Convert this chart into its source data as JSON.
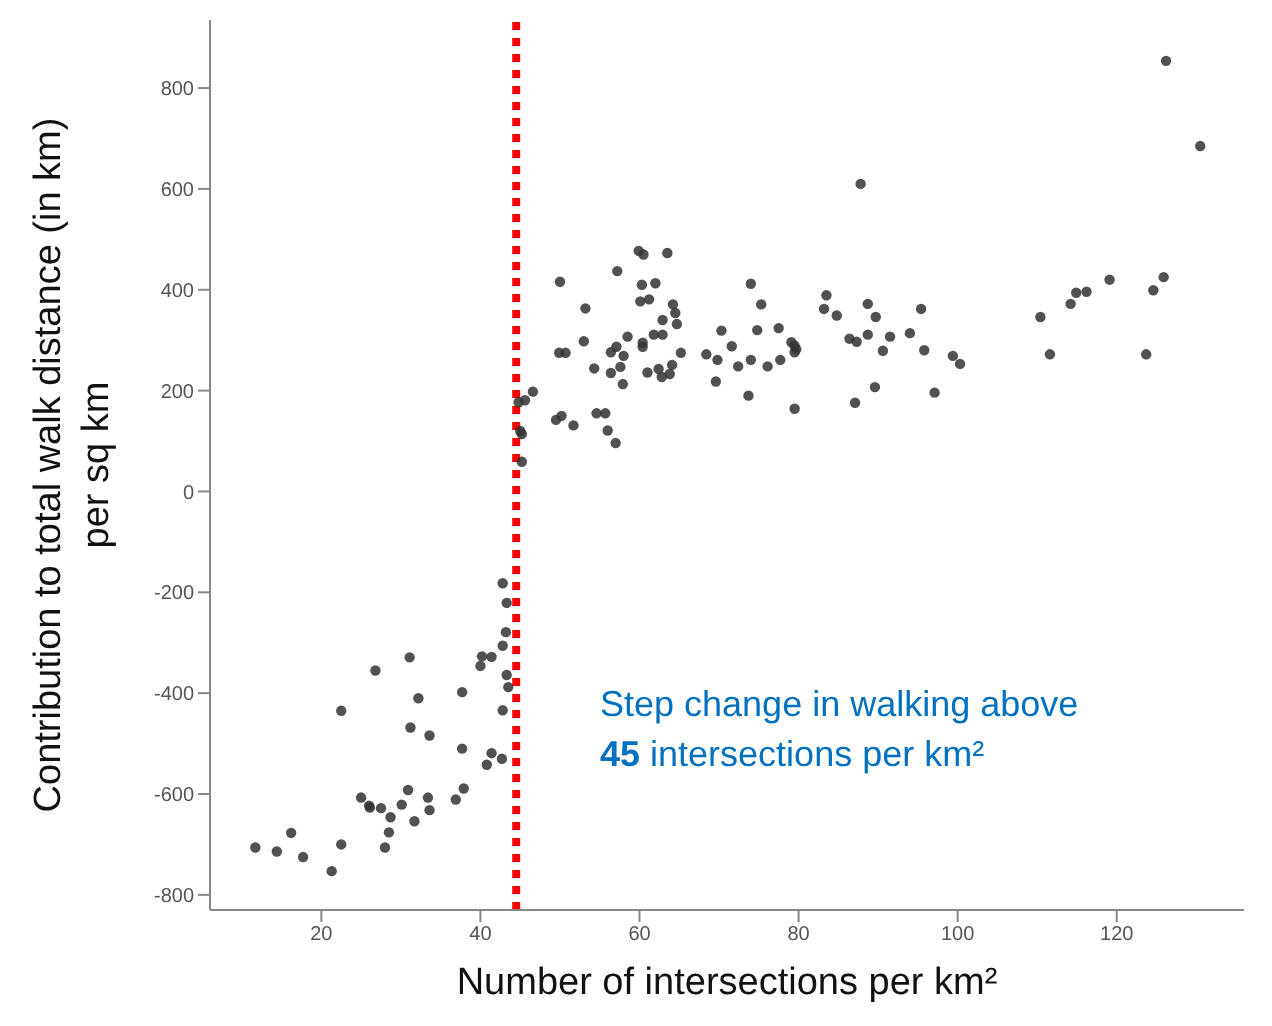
{
  "chart_data": {
    "type": "scatter",
    "xlabel": "Number of intersections per km²",
    "ylabel": "Contribution to total walk distance (in km) per sq km",
    "xlim": [
      6,
      136
    ],
    "ylim": [
      -830,
      935
    ],
    "xticks": [
      20,
      40,
      60,
      80,
      100,
      120
    ],
    "yticks": [
      -800,
      -600,
      -400,
      -200,
      0,
      200,
      400,
      600,
      800
    ],
    "grid": false,
    "marker": "circle",
    "legend": false,
    "ref_lines": [
      {
        "axis": "x",
        "value": 44.5,
        "color": "#ff0000",
        "line_style": "dotted"
      }
    ],
    "annotations": [
      "Step change in walking above 45 intersections per km²"
    ],
    "series": [
      {
        "color": "#333333",
        "x": [
          42.8,
          43.3,
          43.2,
          42.8,
          41.4,
          40.2,
          40.0,
          43.3,
          43.5,
          42.8,
          37.7,
          31.1,
          26.8,
          32.2,
          22.5,
          31.2,
          33.6,
          37.7,
          41.4,
          42.7,
          40.8,
          30.9,
          25,
          26,
          26.1,
          27.5,
          30.1,
          33.4,
          37.9,
          36.9,
          33.6,
          28.7,
          31.7,
          28.5,
          16.2,
          11.7,
          14.4,
          17.7,
          22.5,
          28,
          21.3,
          59.9,
          60.5,
          63.5,
          50,
          57.2,
          60.3,
          62,
          60.1,
          61.2,
          53.2,
          64.2,
          64.5,
          62.9,
          64.7,
          61.8,
          62.9,
          58.5,
          53,
          60.4,
          60.4,
          57.1,
          56.4,
          58,
          65.2,
          49.9,
          50.7,
          68.4,
          64.1,
          57.6,
          54.3,
          56.4,
          61,
          62.4,
          62.8,
          63.8,
          57.9,
          46.6,
          45.6,
          44.8,
          50.2,
          49.5,
          51.7,
          54.6,
          55.7,
          56,
          57,
          45,
          45.2,
          45.2,
          70.3,
          71.6,
          69.8,
          72.4,
          74,
          74,
          69.6,
          73.7,
          87.8,
          75.3,
          74.8,
          77.5,
          76.1,
          77.7,
          79.1,
          79.5,
          79.7,
          79.5,
          79.5,
          83.5,
          83.2,
          84.8,
          88.7,
          89.7,
          86.4,
          87.3,
          88.7,
          91.5,
          90.6,
          94,
          95.4,
          95.8,
          99.4,
          100.3,
          89.6,
          87.1,
          97.1,
          126.2,
          130.5,
          125.9,
          124.6,
          119.1,
          116.2,
          114.9,
          114.2,
          110.4,
          111.6,
          123.7
        ],
        "values": [
          -182,
          -221,
          -279,
          -306,
          -328,
          -327,
          -346,
          -364,
          -388,
          -434,
          -398,
          -329,
          -355,
          -410,
          -435,
          -468,
          -484,
          -510,
          -519,
          -530,
          -542,
          -592,
          -607,
          -623,
          -627,
          -628,
          -621,
          -607,
          -589,
          -611,
          -632,
          -646,
          -654,
          -676,
          -677,
          -706,
          -714,
          -725,
          -700,
          -706,
          -753,
          477,
          470,
          473,
          416,
          437,
          410,
          413,
          377,
          381,
          363,
          371,
          354,
          340,
          332,
          311,
          311,
          307,
          298,
          295,
          287,
          287,
          276,
          269,
          275,
          275,
          275,
          272,
          251,
          247,
          244,
          235,
          236,
          243,
          227,
          233,
          213,
          198,
          181,
          177,
          150,
          142,
          131,
          155,
          155,
          121,
          96,
          120,
          114,
          59,
          319,
          288,
          261,
          248,
          412,
          261,
          218,
          190,
          610,
          371,
          320,
          324,
          248,
          261,
          296,
          289,
          282,
          276,
          164,
          389,
          362,
          349,
          372,
          346,
          303,
          297,
          311,
          307,
          279,
          314,
          362,
          280,
          269,
          253,
          207,
          176,
          196,
          854,
          685,
          425,
          399,
          420,
          396,
          394,
          372,
          346,
          272,
          272
        ]
      }
    ]
  }
}
